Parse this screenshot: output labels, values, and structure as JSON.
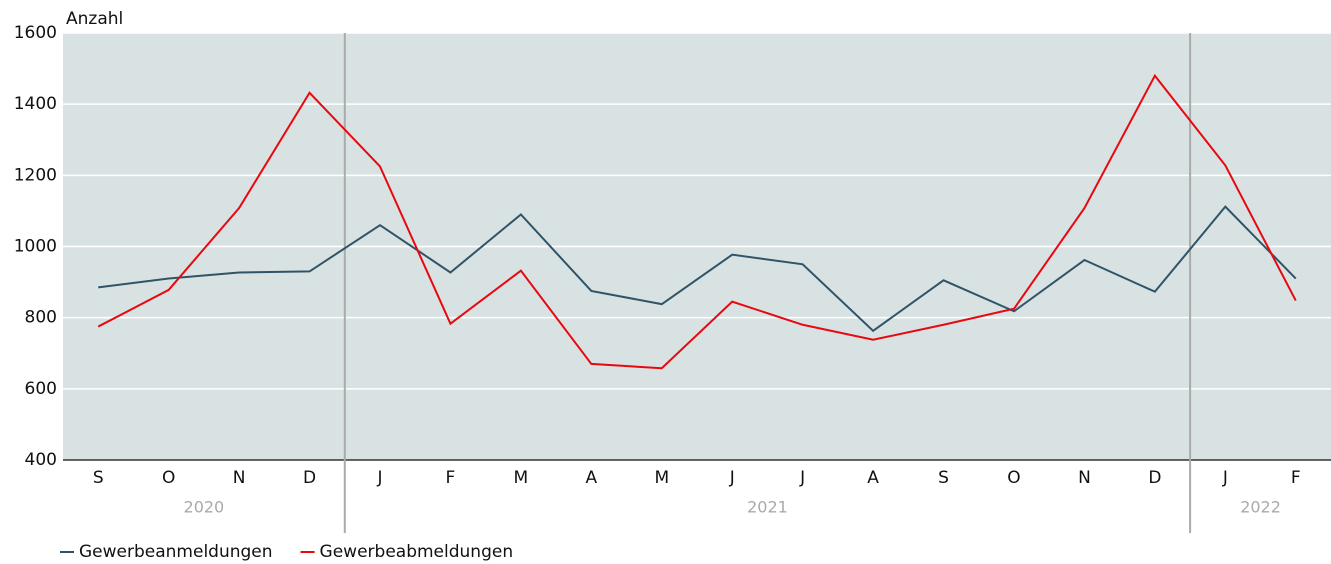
{
  "chart_data": {
    "type": "line",
    "y_label": "Anzahl",
    "categories": [
      "S",
      "O",
      "N",
      "D",
      "J",
      "F",
      "M",
      "A",
      "M",
      "J",
      "J",
      "A",
      "S",
      "O",
      "N",
      "D",
      "J",
      "F"
    ],
    "year_groups": [
      {
        "label": "2020",
        "count": 4
      },
      {
        "label": "2021",
        "count": 12
      },
      {
        "label": "2022",
        "count": 2
      }
    ],
    "series": [
      {
        "name": "Gewerbeanmeldungen",
        "color": "#2f5467",
        "values": [
          885,
          910,
          927,
          930,
          1060,
          927,
          1090,
          875,
          838,
          977,
          950,
          763,
          905,
          818,
          962,
          873,
          1112,
          910
        ]
      },
      {
        "name": "Gewerbeabmeldungen",
        "color": "#e8080f",
        "values": [
          775,
          878,
          1108,
          1432,
          1225,
          783,
          932,
          670,
          658,
          845,
          780,
          738,
          780,
          825,
          1108,
          1480,
          1228,
          848
        ]
      }
    ],
    "ylim": [
      400,
      1600
    ],
    "yticks": [
      400,
      600,
      800,
      1000,
      1200,
      1400,
      1600
    ],
    "grid": true,
    "legend": "bottom-left"
  }
}
